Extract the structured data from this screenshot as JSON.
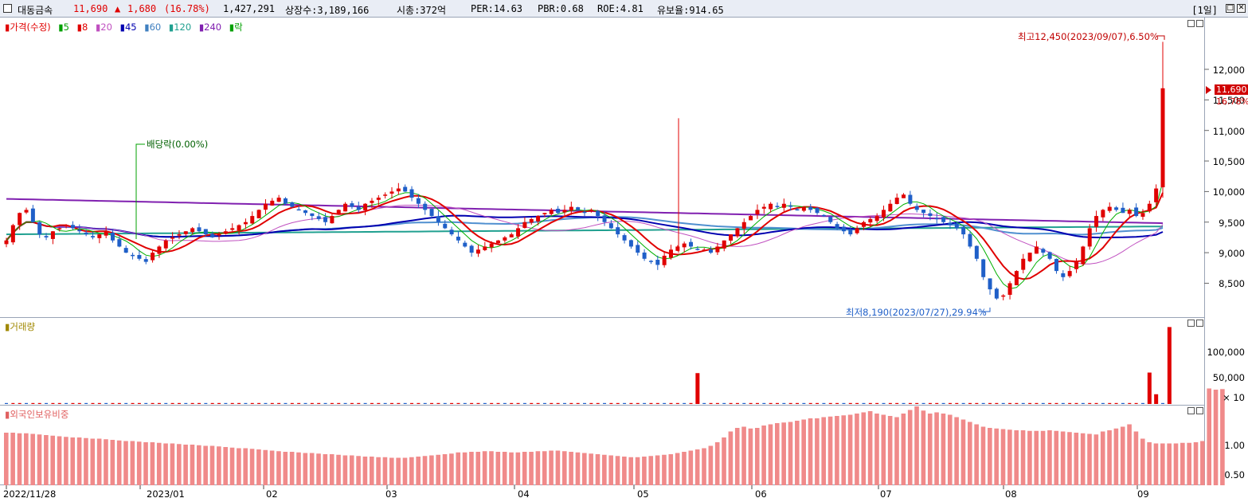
{
  "header": {
    "stock_name": "대동금속",
    "price": "11,690",
    "change_arrow": "▲",
    "change": "1,680",
    "change_pct": "(16.78%)",
    "volume": "1,427,291",
    "listed_shares": "상장수:3,189,166",
    "market_cap": "시총:372억",
    "per": "PER:14.63",
    "pbr": "PBR:0.68",
    "roe": "ROE:4.81",
    "reserve_ratio": "유보율:914.65",
    "period": "[1일]"
  },
  "colors": {
    "up": "#e00000",
    "down": "#1f5fc8",
    "ma5": "#00b000",
    "ma20": "#c050c0",
    "ma45": "#0000b0",
    "ma60": "#5090d0",
    "ma120": "#20a090",
    "ma240": "#8020b0"
  },
  "price_panel": {
    "legend": [
      {
        "text": "가격(수정)",
        "color": "#e00000"
      },
      {
        "text": "5",
        "color": "#00a000"
      },
      {
        "text": "8",
        "color": "#e00000"
      },
      {
        "text": "20",
        "color": "#c050c0"
      },
      {
        "text": "45",
        "color": "#0000b0"
      },
      {
        "text": "60",
        "color": "#4080c0"
      },
      {
        "text": "120",
        "color": "#20a090"
      },
      {
        "text": "240",
        "color": "#8020b0"
      },
      {
        "text": "락",
        "color": "#00a000"
      }
    ],
    "y_ticks": [
      "12,000",
      "11,500",
      "11,000",
      "10,500",
      "10,000",
      "9,500",
      "9,000",
      "8,500"
    ],
    "current_price_tag": "11,690",
    "current_pct_tag": "16.78%",
    "high_annotation": "최고12,450(2023/09/07),6.50%",
    "low_annotation": "최저8,190(2023/07/27),29.94%",
    "dividend_annotation": "배당락(0.00%)"
  },
  "volume_panel": {
    "legend": "거래량",
    "y_ticks": [
      "100,000",
      "50,000"
    ],
    "unit": "× 10"
  },
  "foreign_panel": {
    "legend": "외국인보유비중",
    "y_ticks": [
      "1.00",
      "0.50"
    ]
  },
  "x_labels": [
    "2022/11/28",
    "2023/01",
    "02",
    "03",
    "04",
    "05",
    "06",
    "07",
    "08",
    "09"
  ],
  "chart_data": {
    "type": "candlestick",
    "price_range": [
      8190,
      12450
    ],
    "key_points": [
      {
        "date": "2023/07/27",
        "label": "low",
        "value": 8190
      },
      {
        "date": "2023/09/07",
        "label": "high",
        "value": 12450
      },
      {
        "date": "last",
        "label": "close",
        "value": 11690
      }
    ],
    "close_path": [
      9200,
      9450,
      9650,
      9700,
      9500,
      9300,
      9250,
      9350,
      9400,
      9450,
      9400,
      9350,
      9300,
      9250,
      9300,
      9350,
      9200,
      9100,
      9000,
      8950,
      8900,
      8850,
      9000,
      9100,
      9200,
      9250,
      9300,
      9350,
      9400,
      9350,
      9300,
      9250,
      9300,
      9350,
      9400,
      9450,
      9500,
      9600,
      9700,
      9800,
      9850,
      9900,
      9800,
      9750,
      9700,
      9650,
      9600,
      9550,
      9500,
      9600,
      9700,
      9800,
      9750,
      9700,
      9800,
      9850,
      9900,
      9950,
      10000,
      10050,
      10000,
      9900,
      9800,
      9700,
      9600,
      9500,
      9400,
      9300,
      9200,
      9100,
      9000,
      9050,
      9100,
      9150,
      9200,
      9250,
      9300,
      9400,
      9500,
      9550,
      9600,
      9650,
      9700,
      9650,
      9700,
      9750,
      9700,
      9650,
      9700,
      9600,
      9500,
      9400,
      9300,
      9200,
      9100,
      9000,
      8900,
      8850,
      8800,
      8950,
      9050,
      9100,
      9150,
      9100,
      9050,
      9050,
      9000,
      9100,
      9200,
      9300,
      9400,
      9500,
      9600,
      9700,
      9750,
      9800,
      9750,
      9800,
      9750,
      9700,
      9750,
      9700,
      9650,
      9600,
      9500,
      9400,
      9350,
      9300,
      9400,
      9500,
      9550,
      9600,
      9700,
      9800,
      9900,
      9950,
      9800,
      9700,
      9650,
      9600,
      9550,
      9500,
      9450,
      9400,
      9300,
      9100,
      8900,
      8600,
      8400,
      8250,
      8300,
      8500,
      8700,
      8900,
      9000,
      9100,
      9000,
      8900,
      8700,
      8600,
      8700,
      8850,
      9100,
      9400,
      9600,
      9700,
      9750,
      9700,
      9650,
      9700,
      9600,
      9650,
      9800,
      10050,
      11690
    ],
    "volume_spikes_x10": [
      {
        "index": 104,
        "value": 57000
      },
      {
        "index": 172,
        "value": 58000
      },
      {
        "index": 173,
        "value": 18000
      },
      {
        "index": 175,
        "value": 142000
      }
    ],
    "foreign_ratio": [
      0.88,
      0.88,
      0.87,
      0.87,
      0.86,
      0.85,
      0.84,
      0.83,
      0.82,
      0.81,
      0.8,
      0.8,
      0.79,
      0.78,
      0.78,
      0.77,
      0.76,
      0.75,
      0.74,
      0.74,
      0.73,
      0.72,
      0.72,
      0.71,
      0.7,
      0.7,
      0.69,
      0.68,
      0.68,
      0.67,
      0.66,
      0.66,
      0.65,
      0.64,
      0.63,
      0.62,
      0.62,
      0.61,
      0.6,
      0.59,
      0.58,
      0.57,
      0.56,
      0.56,
      0.55,
      0.54,
      0.54,
      0.53,
      0.52,
      0.52,
      0.51,
      0.5,
      0.5,
      0.49,
      0.48,
      0.48,
      0.47,
      0.47,
      0.46,
      0.46,
      0.46,
      0.47,
      0.48,
      0.49,
      0.5,
      0.51,
      0.52,
      0.53,
      0.55,
      0.55,
      0.56,
      0.56,
      0.57,
      0.57,
      0.56,
      0.56,
      0.55,
      0.55,
      0.56,
      0.56,
      0.57,
      0.57,
      0.58,
      0.58,
      0.57,
      0.56,
      0.55,
      0.54,
      0.53,
      0.52,
      0.51,
      0.5,
      0.49,
      0.48,
      0.47,
      0.47,
      0.48,
      0.49,
      0.5,
      0.51,
      0.52,
      0.54,
      0.56,
      0.58,
      0.6,
      0.62,
      0.66,
      0.72,
      0.8,
      0.9,
      0.96,
      0.98,
      0.95,
      0.96,
      1.0,
      1.02,
      1.04,
      1.05,
      1.06,
      1.08,
      1.1,
      1.12,
      1.12,
      1.14,
      1.15,
      1.16,
      1.17,
      1.18,
      1.2,
      1.22,
      1.24,
      1.2,
      1.18,
      1.16,
      1.14,
      1.2,
      1.26,
      1.32,
      1.25,
      1.2,
      1.22,
      1.2,
      1.18,
      1.14,
      1.1,
      1.06,
      1.02,
      0.98,
      0.96,
      0.95,
      0.94,
      0.93,
      0.92,
      0.92,
      0.91,
      0.91,
      0.91,
      0.92,
      0.91,
      0.9,
      0.89,
      0.88,
      0.87,
      0.86,
      0.85,
      0.9,
      0.92,
      0.95,
      0.98,
      1.02,
      0.9,
      0.78,
      0.72,
      0.7,
      0.7,
      0.7,
      0.7,
      0.71,
      0.71,
      0.72,
      0.74,
      1.62,
      1.6,
      1.61
    ]
  }
}
